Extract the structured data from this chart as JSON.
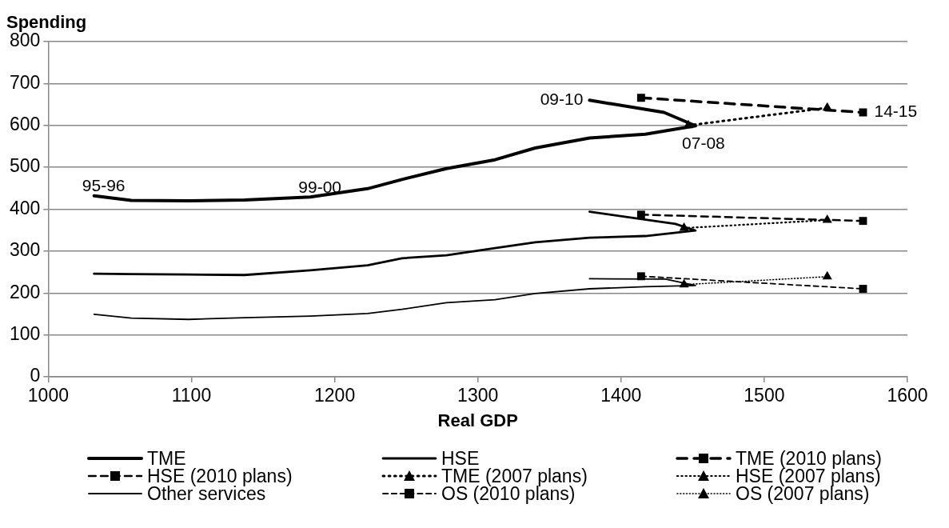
{
  "chart_data": {
    "type": "line",
    "xlabel": "Real GDP",
    "ylabel": "Spending",
    "xlim": [
      1000,
      1600
    ],
    "xticks": [
      1000,
      1100,
      1200,
      1300,
      1400,
      1500,
      1600
    ],
    "ylim": [
      0,
      800
    ],
    "yticks": [
      0,
      100,
      200,
      300,
      400,
      500,
      600,
      700,
      800
    ],
    "grid": "y",
    "legend": "bottom",
    "series": [
      {
        "name": "TME",
        "color": "#000000",
        "marker": "none",
        "line_style": "solid",
        "x": [
          1032,
          1058,
          1098,
          1137,
          1183,
          1223,
          1247,
          1278,
          1312,
          1340,
          1378,
          1417,
          1452,
          1430,
          1378
        ],
        "values": [
          432,
          421,
          420,
          422,
          429,
          449,
          471,
          497,
          518,
          546,
          570,
          579,
          599,
          631,
          660
        ]
      },
      {
        "name": "HSE",
        "color": "#000000",
        "marker": "none",
        "line_style": "solid",
        "x": [
          1032,
          1058,
          1098,
          1137,
          1183,
          1223,
          1247,
          1278,
          1312,
          1340,
          1378,
          1417,
          1452,
          1438,
          1378
        ],
        "values": [
          246,
          245,
          244,
          243,
          254,
          266,
          283,
          290,
          307,
          321,
          332,
          336,
          349,
          365,
          394
        ]
      },
      {
        "name": "TME (2010 plans)",
        "color": "#000000",
        "marker": "square",
        "line_style": "dashed",
        "x": [
          1414,
          1569
        ],
        "values": [
          666,
          631
        ]
      },
      {
        "name": "HSE (2010 plans)",
        "color": "#000000",
        "marker": "square",
        "line_style": "dashed",
        "x": [
          1414,
          1569
        ],
        "values": [
          387,
          372
        ]
      },
      {
        "name": "TME (2007 plans)",
        "color": "#000000",
        "marker": "triangle",
        "line_style": "dotted",
        "x": [
          1447,
          1544
        ],
        "values": [
          600,
          642
        ]
      },
      {
        "name": "HSE (2007 plans)",
        "color": "#000000",
        "marker": "triangle",
        "line_style": "dotted",
        "x": [
          1444,
          1544
        ],
        "values": [
          355,
          374
        ]
      },
      {
        "name": "Other services",
        "color": "#000000",
        "marker": "none",
        "line_style": "solid",
        "x": [
          1032,
          1058,
          1098,
          1137,
          1183,
          1223,
          1247,
          1278,
          1312,
          1340,
          1378,
          1417,
          1452,
          1431,
          1378
        ],
        "values": [
          149,
          140,
          137,
          141,
          145,
          151,
          161,
          177,
          184,
          199,
          210,
          215,
          218,
          233,
          234
        ]
      },
      {
        "name": "OS (2010 plans)",
        "color": "#000000",
        "marker": "square",
        "line_style": "dashed",
        "x": [
          1414,
          1569
        ],
        "values": [
          240,
          210
        ]
      },
      {
        "name": "OS (2007 plans)",
        "color": "#000000",
        "marker": "triangle",
        "line_style": "dotted",
        "x": [
          1444,
          1544
        ],
        "values": [
          220,
          239
        ]
      }
    ],
    "annotations": [
      {
        "text": "95-96",
        "x": 1032,
        "y": 432
      },
      {
        "text": "99-00",
        "x": 1183,
        "y": 429
      },
      {
        "text": "09-10",
        "x": 1378,
        "y": 660
      },
      {
        "text": "07-08",
        "x": 1452,
        "y": 599
      },
      {
        "text": "14-15",
        "x": 1569,
        "y": 631
      }
    ]
  }
}
